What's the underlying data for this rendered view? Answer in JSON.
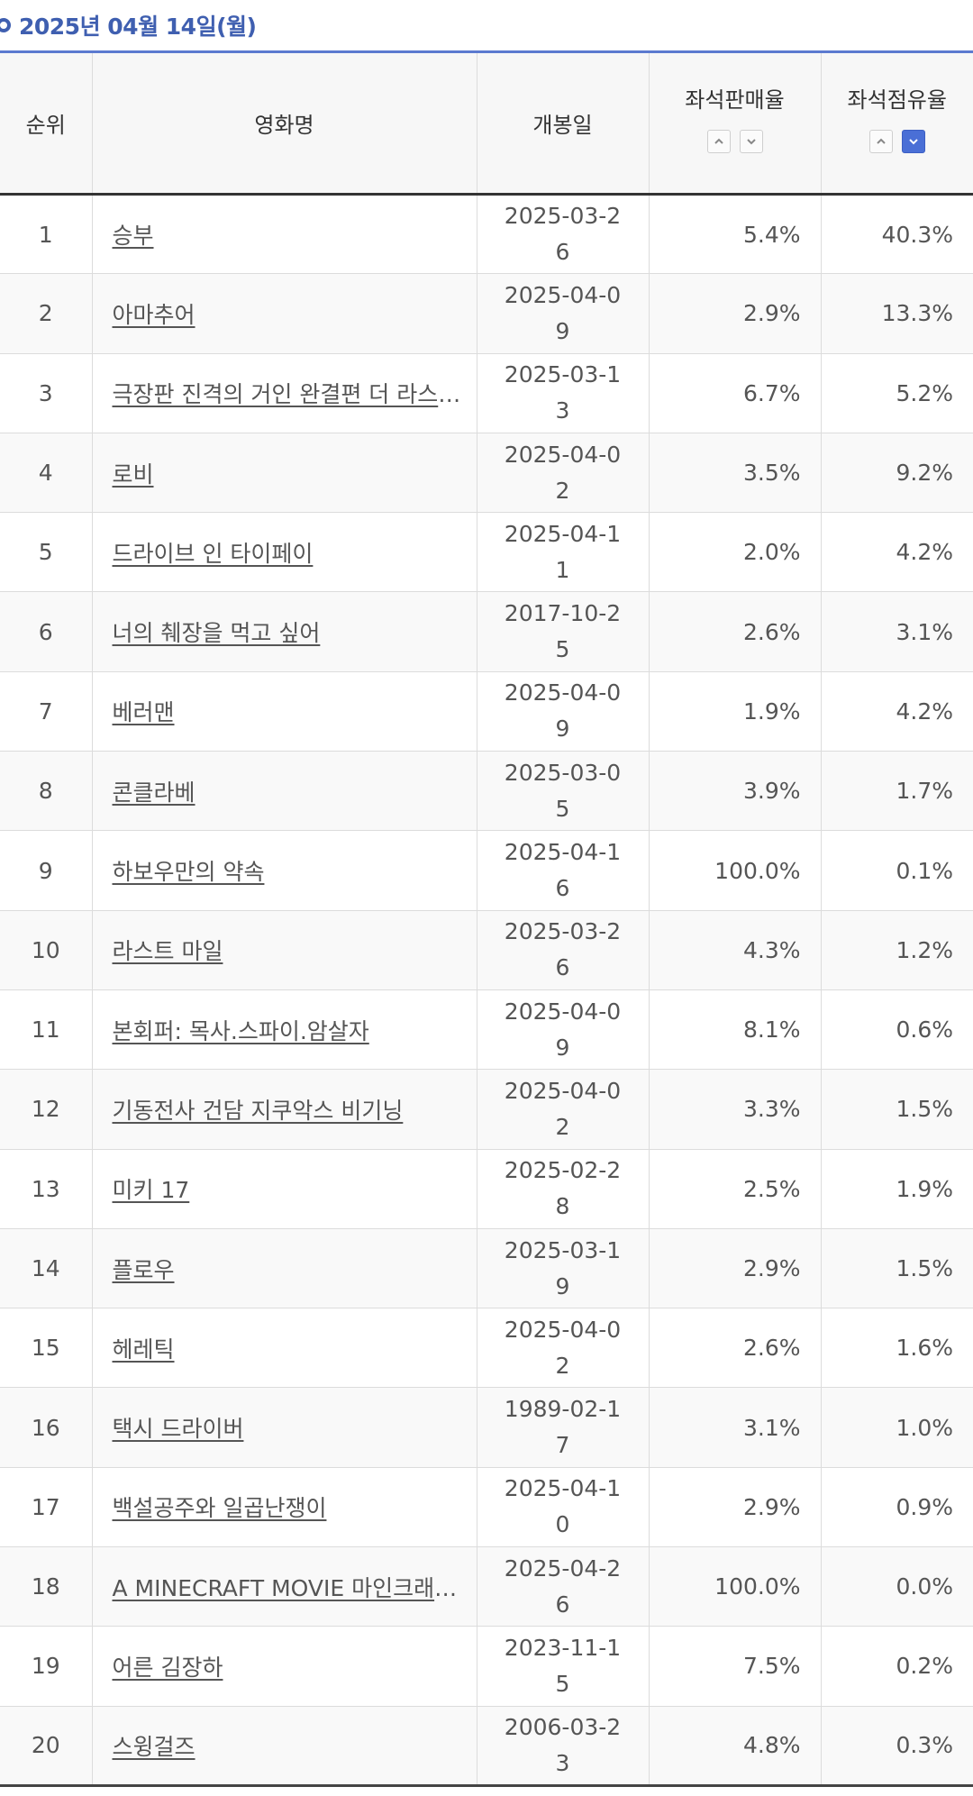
{
  "header": {
    "date": "2025년 04월 14일(월)"
  },
  "columns": {
    "rank": "순위",
    "title": "영화명",
    "release": "개봉일",
    "sales_rate": "좌석판매율",
    "occupancy_rate": "좌석점유율"
  },
  "rows": [
    {
      "rank": "1",
      "title": "승부",
      "release": "2025-03-26",
      "sales": "5.4%",
      "occupancy": "40.3%"
    },
    {
      "rank": "2",
      "title": "아마추어",
      "release": "2025-04-09",
      "sales": "2.9%",
      "occupancy": "13.3%"
    },
    {
      "rank": "3",
      "title": "극장판 진격의 거인 완결편 더 라스트 어택",
      "release": "2025-03-13",
      "sales": "6.7%",
      "occupancy": "5.2%"
    },
    {
      "rank": "4",
      "title": "로비",
      "release": "2025-04-02",
      "sales": "3.5%",
      "occupancy": "9.2%"
    },
    {
      "rank": "5",
      "title": "드라이브 인 타이페이",
      "release": "2025-04-11",
      "sales": "2.0%",
      "occupancy": "4.2%"
    },
    {
      "rank": "6",
      "title": "너의 췌장을 먹고 싶어",
      "release": "2017-10-25",
      "sales": "2.6%",
      "occupancy": "3.1%"
    },
    {
      "rank": "7",
      "title": "베러맨",
      "release": "2025-04-09",
      "sales": "1.9%",
      "occupancy": "4.2%"
    },
    {
      "rank": "8",
      "title": "콘클라베",
      "release": "2025-03-05",
      "sales": "3.9%",
      "occupancy": "1.7%"
    },
    {
      "rank": "9",
      "title": "하보우만의 약속",
      "release": "2025-04-16",
      "sales": "100.0%",
      "occupancy": "0.1%"
    },
    {
      "rank": "10",
      "title": "라스트 마일",
      "release": "2025-03-26",
      "sales": "4.3%",
      "occupancy": "1.2%"
    },
    {
      "rank": "11",
      "title": "본회퍼: 목사.스파이.암살자",
      "release": "2025-04-09",
      "sales": "8.1%",
      "occupancy": "0.6%"
    },
    {
      "rank": "12",
      "title": "기동전사 건담 지쿠악스 비기닝",
      "release": "2025-04-02",
      "sales": "3.3%",
      "occupancy": "1.5%"
    },
    {
      "rank": "13",
      "title": "미키 17",
      "release": "2025-02-28",
      "sales": "2.5%",
      "occupancy": "1.9%"
    },
    {
      "rank": "14",
      "title": "플로우",
      "release": "2025-03-19",
      "sales": "2.9%",
      "occupancy": "1.5%"
    },
    {
      "rank": "15",
      "title": "헤레틱",
      "release": "2025-04-02",
      "sales": "2.6%",
      "occupancy": "1.6%"
    },
    {
      "rank": "16",
      "title": "택시 드라이버",
      "release": "1989-02-17",
      "sales": "3.1%",
      "occupancy": "1.0%"
    },
    {
      "rank": "17",
      "title": "백설공주와 일곱난쟁이",
      "release": "2025-04-10",
      "sales": "2.9%",
      "occupancy": "0.9%"
    },
    {
      "rank": "18",
      "title": "A MINECRAFT MOVIE 마인크래프트 무비",
      "release": "2025-04-26",
      "sales": "100.0%",
      "occupancy": "0.0%"
    },
    {
      "rank": "19",
      "title": "어른 김장하",
      "release": "2023-11-15",
      "sales": "7.5%",
      "occupancy": "0.2%"
    },
    {
      "rank": "20",
      "title": "스윙걸즈",
      "release": "2006-03-23",
      "sales": "4.8%",
      "occupancy": "0.3%"
    }
  ],
  "colors": {
    "accent": "#3f5fb0",
    "active_sort": "#4a6fd6"
  },
  "icons": {
    "asc": "chevron-up-icon",
    "desc": "chevron-down-icon"
  }
}
